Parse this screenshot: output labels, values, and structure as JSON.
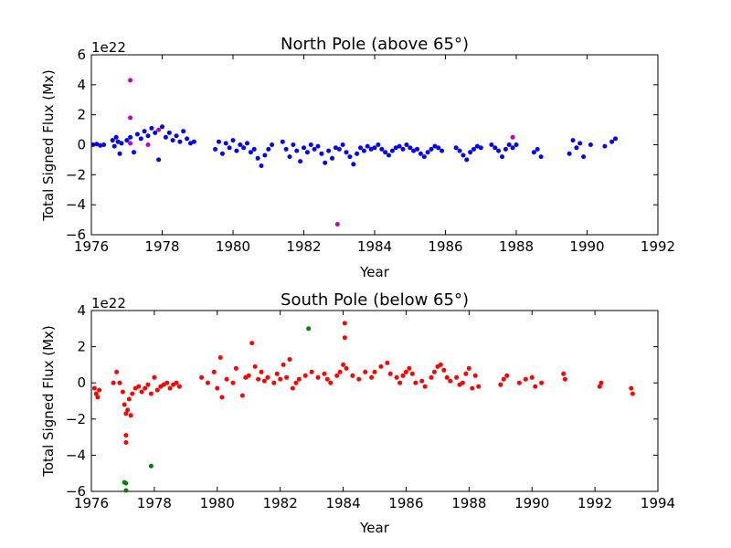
{
  "chart_data": [
    {
      "type": "scatter",
      "title": "North Pole (above 65°)",
      "xlabel": "Year",
      "ylabel": "Total Signed Flux (Mx)",
      "y_offset_label": "1e22",
      "xlim": [
        1976,
        1992
      ],
      "ylim": [
        -6,
        6
      ],
      "xticks": [
        1976,
        1978,
        1980,
        1982,
        1984,
        1986,
        1988,
        1990,
        1992
      ],
      "yticks": [
        -6,
        -4,
        -2,
        0,
        2,
        4,
        6
      ],
      "grid": false,
      "series": [
        {
          "color": "#0000ff",
          "points": [
            [
              1976.05,
              0.0
            ],
            [
              1976.15,
              0.05
            ],
            [
              1976.25,
              -0.05
            ],
            [
              1976.35,
              0.0
            ],
            [
              1976.6,
              0.3
            ],
            [
              1976.65,
              -0.1
            ],
            [
              1976.7,
              0.5
            ],
            [
              1976.75,
              0.2
            ],
            [
              1976.8,
              -0.6
            ],
            [
              1976.85,
              0.1
            ],
            [
              1977.0,
              0.3
            ],
            [
              1977.1,
              0.5
            ],
            [
              1977.2,
              -0.5
            ],
            [
              1977.3,
              0.7
            ],
            [
              1977.4,
              0.4
            ],
            [
              1977.5,
              0.9
            ],
            [
              1977.6,
              0.6
            ],
            [
              1977.7,
              1.1
            ],
            [
              1977.8,
              0.8
            ],
            [
              1977.9,
              -1.0
            ],
            [
              1978.0,
              1.2
            ],
            [
              1978.1,
              0.5
            ],
            [
              1978.2,
              0.8
            ],
            [
              1978.3,
              0.3
            ],
            [
              1978.4,
              0.6
            ],
            [
              1978.5,
              0.2
            ],
            [
              1978.6,
              0.9
            ],
            [
              1978.7,
              0.4
            ],
            [
              1978.8,
              0.1
            ],
            [
              1978.9,
              0.2
            ],
            [
              1979.5,
              -0.3
            ],
            [
              1979.6,
              0.2
            ],
            [
              1979.7,
              -0.6
            ],
            [
              1979.8,
              0.1
            ],
            [
              1979.9,
              -0.2
            ],
            [
              1980.0,
              0.3
            ],
            [
              1980.1,
              -0.4
            ],
            [
              1980.2,
              0.0
            ],
            [
              1980.3,
              -0.2
            ],
            [
              1980.4,
              0.1
            ],
            [
              1980.5,
              -0.5
            ],
            [
              1980.6,
              -0.3
            ],
            [
              1980.7,
              -0.9
            ],
            [
              1980.8,
              -1.4
            ],
            [
              1980.9,
              -0.7
            ],
            [
              1981.0,
              -0.3
            ],
            [
              1981.1,
              0.0
            ],
            [
              1981.4,
              0.2
            ],
            [
              1981.5,
              -0.3
            ],
            [
              1981.6,
              -0.8
            ],
            [
              1981.7,
              0.0
            ],
            [
              1981.8,
              -0.4
            ],
            [
              1981.9,
              -1.1
            ],
            [
              1982.0,
              -0.2
            ],
            [
              1982.1,
              -0.5
            ],
            [
              1982.2,
              0.0
            ],
            [
              1982.3,
              -0.3
            ],
            [
              1982.4,
              -0.1
            ],
            [
              1982.5,
              -0.6
            ],
            [
              1982.6,
              -1.2
            ],
            [
              1982.7,
              -0.4
            ],
            [
              1982.8,
              -0.9
            ],
            [
              1982.9,
              -0.2
            ],
            [
              1983.0,
              -0.3
            ],
            [
              1983.1,
              0.0
            ],
            [
              1983.2,
              -0.5
            ],
            [
              1983.3,
              -0.8
            ],
            [
              1983.4,
              -1.3
            ],
            [
              1983.5,
              -0.6
            ],
            [
              1983.6,
              -0.2
            ],
            [
              1983.7,
              -0.4
            ],
            [
              1983.8,
              -0.1
            ],
            [
              1983.9,
              -0.3
            ],
            [
              1984.0,
              -0.2
            ],
            [
              1984.1,
              0.0
            ],
            [
              1984.2,
              -0.3
            ],
            [
              1984.3,
              -0.5
            ],
            [
              1984.4,
              -0.7
            ],
            [
              1984.5,
              -0.4
            ],
            [
              1984.6,
              -0.2
            ],
            [
              1984.7,
              -0.1
            ],
            [
              1984.8,
              -0.3
            ],
            [
              1984.9,
              0.0
            ],
            [
              1985.0,
              -0.2
            ],
            [
              1985.1,
              -0.4
            ],
            [
              1985.2,
              -0.3
            ],
            [
              1985.3,
              -0.6
            ],
            [
              1985.4,
              -0.8
            ],
            [
              1985.5,
              -0.5
            ],
            [
              1985.6,
              -0.3
            ],
            [
              1985.7,
              -0.1
            ],
            [
              1985.8,
              -0.2
            ],
            [
              1985.9,
              -0.4
            ],
            [
              1986.3,
              -0.2
            ],
            [
              1986.4,
              -0.4
            ],
            [
              1986.5,
              -0.7
            ],
            [
              1986.6,
              -1.0
            ],
            [
              1986.7,
              -0.5
            ],
            [
              1986.8,
              -0.3
            ],
            [
              1986.9,
              -0.1
            ],
            [
              1987.0,
              -0.2
            ],
            [
              1987.3,
              0.0
            ],
            [
              1987.4,
              -0.2
            ],
            [
              1987.5,
              -0.4
            ],
            [
              1987.6,
              -0.8
            ],
            [
              1987.7,
              -0.3
            ],
            [
              1987.8,
              0.0
            ],
            [
              1987.9,
              -0.2
            ],
            [
              1988.0,
              0.0
            ],
            [
              1988.5,
              -0.5
            ],
            [
              1988.6,
              -0.3
            ],
            [
              1988.7,
              -0.8
            ],
            [
              1989.5,
              -0.6
            ],
            [
              1989.6,
              0.3
            ],
            [
              1989.7,
              -0.2
            ],
            [
              1989.8,
              0.1
            ],
            [
              1989.9,
              -0.8
            ],
            [
              1990.1,
              0.0
            ],
            [
              1990.5,
              -0.1
            ],
            [
              1990.7,
              0.2
            ],
            [
              1990.8,
              0.4
            ]
          ]
        },
        {
          "color": "#bf00bf",
          "points": [
            [
              1977.1,
              4.3
            ],
            [
              1977.1,
              1.8
            ],
            [
              1977.1,
              0.1
            ],
            [
              1977.6,
              0.0
            ],
            [
              1977.9,
              1.0
            ],
            [
              1982.95,
              -5.3
            ],
            [
              1987.9,
              0.5
            ]
          ]
        }
      ]
    },
    {
      "type": "scatter",
      "title": "South Pole (below 65°)",
      "xlabel": "Year",
      "ylabel": "Total Signed Flux (Mx)",
      "y_offset_label": "1e22",
      "xlim": [
        1976,
        1994
      ],
      "ylim": [
        -6,
        4
      ],
      "xticks": [
        1976,
        1978,
        1980,
        1982,
        1984,
        1986,
        1988,
        1990,
        1992,
        1994
      ],
      "yticks": [
        -6,
        -4,
        -2,
        0,
        2,
        4
      ],
      "grid": false,
      "series": [
        {
          "color": "#ff0000",
          "points": [
            [
              1976.1,
              -0.3
            ],
            [
              1976.15,
              -0.6
            ],
            [
              1976.2,
              -0.8
            ],
            [
              1976.25,
              -0.4
            ],
            [
              1976.7,
              0.0
            ],
            [
              1976.8,
              0.6
            ],
            [
              1976.9,
              0.0
            ],
            [
              1977.0,
              -0.5
            ],
            [
              1977.05,
              -1.2
            ],
            [
              1977.1,
              -1.7
            ],
            [
              1977.1,
              -3.3
            ],
            [
              1977.1,
              -2.9
            ],
            [
              1977.15,
              -1.5
            ],
            [
              1977.2,
              -0.9
            ],
            [
              1977.25,
              -1.8
            ],
            [
              1977.3,
              -0.6
            ],
            [
              1977.4,
              -0.3
            ],
            [
              1977.5,
              -0.2
            ],
            [
              1977.6,
              -0.5
            ],
            [
              1977.7,
              -0.3
            ],
            [
              1977.8,
              -0.1
            ],
            [
              1977.9,
              -0.6
            ],
            [
              1978.0,
              0.3
            ],
            [
              1978.1,
              -0.4
            ],
            [
              1978.2,
              -0.2
            ],
            [
              1978.3,
              -0.1
            ],
            [
              1978.4,
              0.0
            ],
            [
              1978.5,
              -0.3
            ],
            [
              1978.6,
              -0.1
            ],
            [
              1978.7,
              0.0
            ],
            [
              1978.8,
              -0.2
            ],
            [
              1979.5,
              0.3
            ],
            [
              1979.7,
              0.0
            ],
            [
              1979.9,
              0.6
            ],
            [
              1980.0,
              -0.3
            ],
            [
              1980.1,
              1.4
            ],
            [
              1980.15,
              -0.8
            ],
            [
              1980.3,
              0.2
            ],
            [
              1980.5,
              0.0
            ],
            [
              1980.6,
              0.8
            ],
            [
              1980.8,
              -0.7
            ],
            [
              1980.9,
              0.3
            ],
            [
              1981.0,
              0.4
            ],
            [
              1981.1,
              2.2
            ],
            [
              1981.2,
              0.9
            ],
            [
              1981.3,
              0.2
            ],
            [
              1981.4,
              0.6
            ],
            [
              1981.5,
              0.1
            ],
            [
              1981.6,
              0.3
            ],
            [
              1981.8,
              0.0
            ],
            [
              1981.9,
              0.5
            ],
            [
              1982.0,
              0.2
            ],
            [
              1982.1,
              1.0
            ],
            [
              1982.2,
              0.3
            ],
            [
              1982.3,
              1.3
            ],
            [
              1982.4,
              -0.3
            ],
            [
              1982.5,
              0.0
            ],
            [
              1982.6,
              0.2
            ],
            [
              1982.8,
              0.4
            ],
            [
              1983.0,
              0.6
            ],
            [
              1983.2,
              0.3
            ],
            [
              1983.4,
              0.5
            ],
            [
              1983.5,
              0.2
            ],
            [
              1983.6,
              0.0
            ],
            [
              1983.8,
              0.4
            ],
            [
              1983.9,
              0.6
            ],
            [
              1984.0,
              1.0
            ],
            [
              1984.05,
              2.5
            ],
            [
              1984.05,
              3.3
            ],
            [
              1984.1,
              0.8
            ],
            [
              1984.3,
              0.4
            ],
            [
              1984.5,
              0.2
            ],
            [
              1984.7,
              0.6
            ],
            [
              1984.9,
              0.3
            ],
            [
              1985.0,
              0.6
            ],
            [
              1985.2,
              0.9
            ],
            [
              1985.4,
              1.1
            ],
            [
              1985.5,
              0.5
            ],
            [
              1985.7,
              0.3
            ],
            [
              1985.8,
              0.0
            ],
            [
              1985.9,
              0.4
            ],
            [
              1986.0,
              0.6
            ],
            [
              1986.1,
              0.8
            ],
            [
              1986.2,
              0.5
            ],
            [
              1986.3,
              0.0
            ],
            [
              1986.5,
              0.1
            ],
            [
              1986.6,
              -0.2
            ],
            [
              1986.8,
              0.3
            ],
            [
              1986.9,
              0.6
            ],
            [
              1987.0,
              0.9
            ],
            [
              1987.1,
              1.0
            ],
            [
              1987.2,
              0.7
            ],
            [
              1987.3,
              0.3
            ],
            [
              1987.4,
              0.1
            ],
            [
              1987.6,
              0.3
            ],
            [
              1987.7,
              -0.1
            ],
            [
              1987.8,
              0.0
            ],
            [
              1987.9,
              0.5
            ],
            [
              1988.0,
              0.8
            ],
            [
              1988.1,
              -0.3
            ],
            [
              1988.2,
              0.4
            ],
            [
              1988.3,
              -0.2
            ],
            [
              1989.0,
              -0.1
            ],
            [
              1989.1,
              0.2
            ],
            [
              1989.2,
              0.4
            ],
            [
              1989.6,
              0.0
            ],
            [
              1989.8,
              0.2
            ],
            [
              1990.0,
              0.3
            ],
            [
              1990.1,
              -0.2
            ],
            [
              1990.3,
              0.0
            ],
            [
              1991.0,
              0.5
            ],
            [
              1991.05,
              0.2
            ],
            [
              1992.15,
              -0.2
            ],
            [
              1992.2,
              0.0
            ],
            [
              1993.15,
              -0.3
            ],
            [
              1993.2,
              -0.6
            ]
          ]
        },
        {
          "color": "#008000",
          "points": [
            [
              1977.05,
              -5.5
            ],
            [
              1977.1,
              -5.55
            ],
            [
              1977.1,
              -5.95
            ],
            [
              1977.9,
              -4.6
            ],
            [
              1982.9,
              3.0
            ]
          ]
        }
      ]
    }
  ]
}
